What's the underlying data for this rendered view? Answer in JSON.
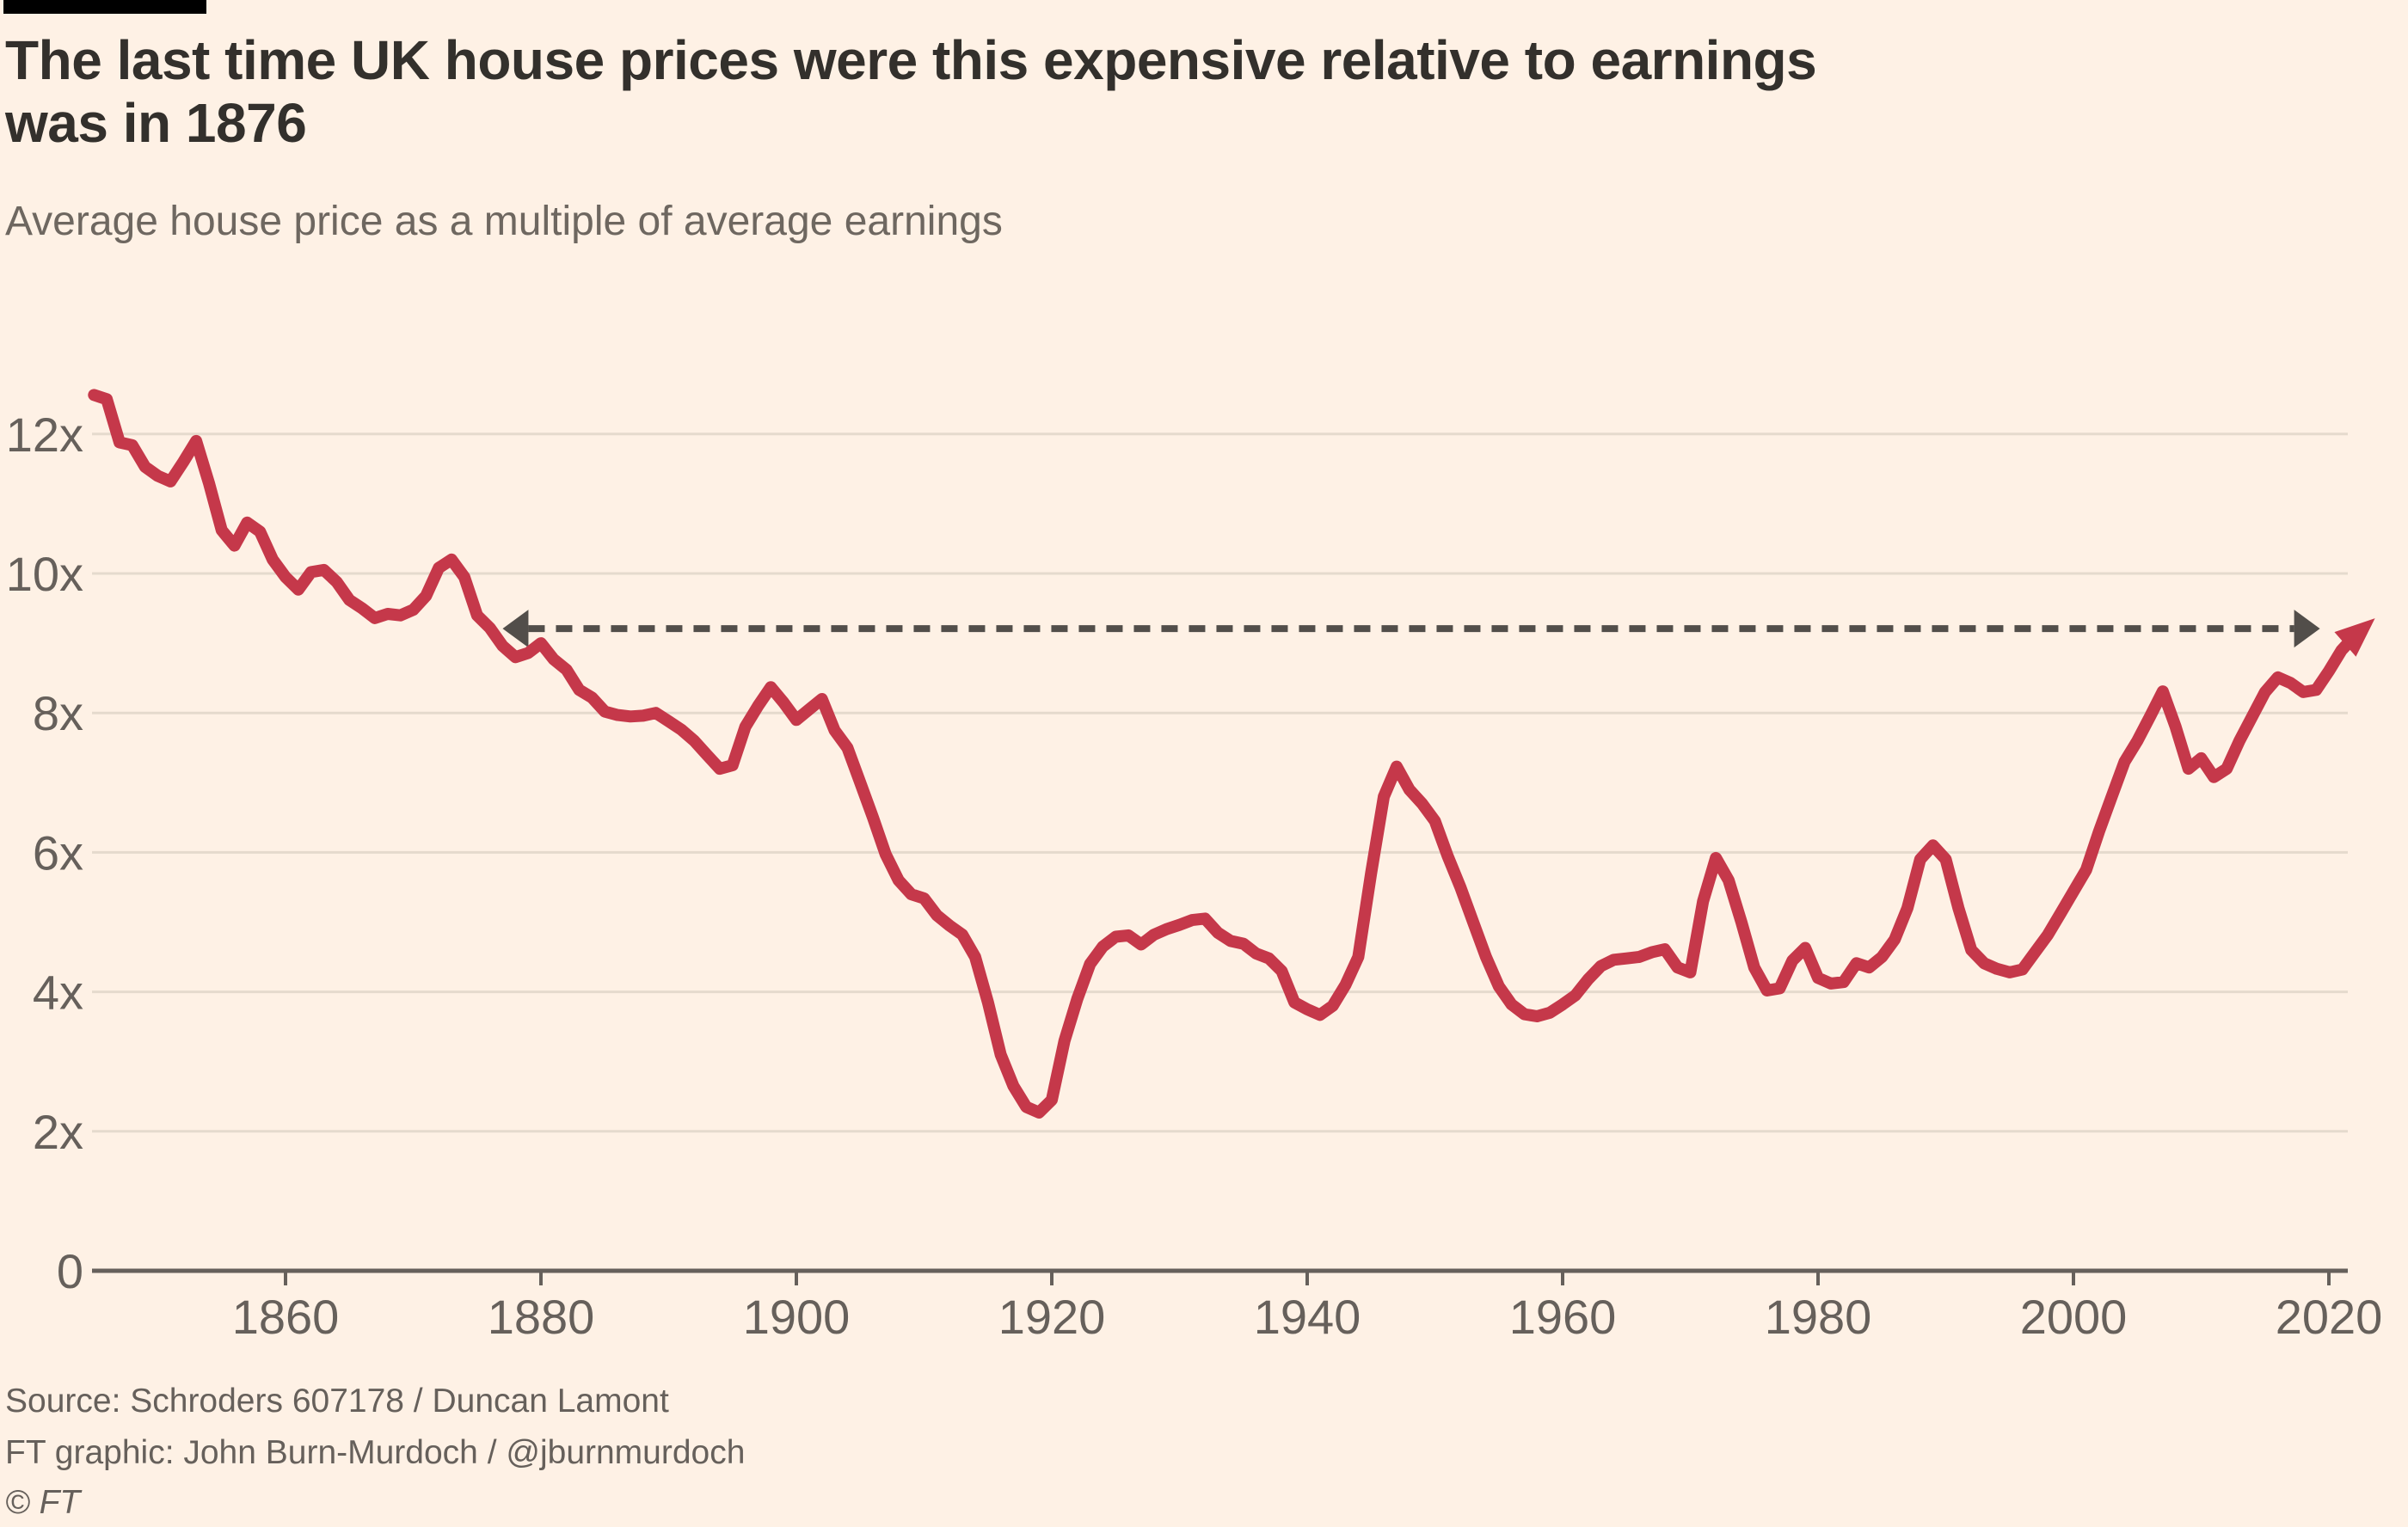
{
  "header": {
    "title_line1": "The last time UK house prices were this expensive relative to earnings",
    "title_line2": "was in 1876",
    "subtitle": "Average house price as a multiple of average earnings"
  },
  "footer": {
    "source": "Source: Schroders 607178 / Duncan Lamont",
    "credit": "FT graphic: John Burn-Murdoch / @jburnmurdoch",
    "copyright": "© FT"
  },
  "colors": {
    "background": "#FEF1E5",
    "title_text": "#33302C",
    "secondary_text": "#66605B",
    "gridline": "#E5DACD",
    "axis": "#66605B",
    "series_red": "#C5384A",
    "reference_dash": "#524E4A",
    "brand_bar": "#000000"
  },
  "chart_data": {
    "type": "line",
    "title": "The last time UK house prices were this expensive relative to earnings was in 1876",
    "subtitle": "Average house price as a multiple of average earnings",
    "xlabel": "",
    "ylabel": "",
    "xlim": [
      1845,
      2026
    ],
    "ylim": [
      0,
      13
    ],
    "grid": "horizontal",
    "legend": "none",
    "x_ticks": [
      1860,
      1880,
      1900,
      1920,
      1940,
      1960,
      1980,
      2000,
      2020
    ],
    "y_ticks": [
      {
        "value": 0,
        "label": "0"
      },
      {
        "value": 2,
        "label": "2x"
      },
      {
        "value": 4,
        "label": "4x"
      },
      {
        "value": 6,
        "label": "6x"
      },
      {
        "value": 8,
        "label": "8x"
      },
      {
        "value": 10,
        "label": "10x"
      },
      {
        "value": 12,
        "label": "12x"
      }
    ],
    "annotation": {
      "type": "dashed-double-arrow-line",
      "level": 9.21,
      "from_year": 1877,
      "to_year": 2019.3,
      "meaning": "1876 price-to-earnings level carried across to the present day"
    },
    "series": [
      {
        "name": "Average house price as a multiple of average earnings",
        "color": "#C5384A",
        "end_marker": "arrowhead-up-right",
        "points": [
          [
            1845,
            12.56
          ],
          [
            1846,
            12.5
          ],
          [
            1847,
            11.88
          ],
          [
            1848,
            11.84
          ],
          [
            1849,
            11.53
          ],
          [
            1850,
            11.4
          ],
          [
            1851,
            11.32
          ],
          [
            1852,
            11.6
          ],
          [
            1853,
            11.9
          ],
          [
            1854,
            11.3
          ],
          [
            1855,
            10.62
          ],
          [
            1856,
            10.4
          ],
          [
            1857,
            10.73
          ],
          [
            1858,
            10.6
          ],
          [
            1859,
            10.2
          ],
          [
            1860,
            9.95
          ],
          [
            1861,
            9.77
          ],
          [
            1862,
            10.02
          ],
          [
            1863,
            10.05
          ],
          [
            1864,
            9.88
          ],
          [
            1865,
            9.62
          ],
          [
            1866,
            9.5
          ],
          [
            1867,
            9.36
          ],
          [
            1868,
            9.42
          ],
          [
            1869,
            9.4
          ],
          [
            1870,
            9.48
          ],
          [
            1871,
            9.68
          ],
          [
            1872,
            10.08
          ],
          [
            1873,
            10.2
          ],
          [
            1874,
            9.95
          ],
          [
            1875,
            9.4
          ],
          [
            1876,
            9.22
          ],
          [
            1877,
            8.96
          ],
          [
            1878,
            8.8
          ],
          [
            1879,
            8.86
          ],
          [
            1880,
            9.0
          ],
          [
            1881,
            8.77
          ],
          [
            1882,
            8.62
          ],
          [
            1883,
            8.33
          ],
          [
            1884,
            8.22
          ],
          [
            1885,
            8.02
          ],
          [
            1886,
            7.97
          ],
          [
            1887,
            7.95
          ],
          [
            1888,
            7.96
          ],
          [
            1889,
            8.0
          ],
          [
            1890,
            7.88
          ],
          [
            1891,
            7.76
          ],
          [
            1892,
            7.6
          ],
          [
            1893,
            7.4
          ],
          [
            1894,
            7.2
          ],
          [
            1895,
            7.25
          ],
          [
            1896,
            7.8
          ],
          [
            1897,
            8.1
          ],
          [
            1898,
            8.37
          ],
          [
            1899,
            8.15
          ],
          [
            1900,
            7.9
          ],
          [
            1901,
            8.05
          ],
          [
            1902,
            8.2
          ],
          [
            1903,
            7.75
          ],
          [
            1904,
            7.5
          ],
          [
            1905,
            7.0
          ],
          [
            1906,
            6.5
          ],
          [
            1907,
            5.97
          ],
          [
            1908,
            5.6
          ],
          [
            1909,
            5.4
          ],
          [
            1910,
            5.34
          ],
          [
            1911,
            5.1
          ],
          [
            1912,
            4.95
          ],
          [
            1913,
            4.82
          ],
          [
            1914,
            4.5
          ],
          [
            1915,
            3.85
          ],
          [
            1916,
            3.1
          ],
          [
            1917,
            2.65
          ],
          [
            1918,
            2.35
          ],
          [
            1919,
            2.27
          ],
          [
            1920,
            2.45
          ],
          [
            1921,
            3.3
          ],
          [
            1922,
            3.9
          ],
          [
            1923,
            4.4
          ],
          [
            1924,
            4.65
          ],
          [
            1925,
            4.79
          ],
          [
            1926,
            4.81
          ],
          [
            1927,
            4.68
          ],
          [
            1928,
            4.82
          ],
          [
            1929,
            4.9
          ],
          [
            1930,
            4.96
          ],
          [
            1931,
            5.03
          ],
          [
            1932,
            5.05
          ],
          [
            1933,
            4.85
          ],
          [
            1934,
            4.73
          ],
          [
            1935,
            4.69
          ],
          [
            1936,
            4.55
          ],
          [
            1937,
            4.48
          ],
          [
            1938,
            4.3
          ],
          [
            1939,
            3.85
          ],
          [
            1940,
            3.75
          ],
          [
            1941,
            3.67
          ],
          [
            1942,
            3.8
          ],
          [
            1943,
            4.1
          ],
          [
            1944,
            4.5
          ],
          [
            1945,
            5.7
          ],
          [
            1946,
            6.8
          ],
          [
            1947,
            7.23
          ],
          [
            1948,
            6.9
          ],
          [
            1949,
            6.7
          ],
          [
            1950,
            6.45
          ],
          [
            1951,
            5.95
          ],
          [
            1952,
            5.5
          ],
          [
            1953,
            5.0
          ],
          [
            1954,
            4.5
          ],
          [
            1955,
            4.08
          ],
          [
            1956,
            3.82
          ],
          [
            1957,
            3.68
          ],
          [
            1958,
            3.65
          ],
          [
            1959,
            3.7
          ],
          [
            1960,
            3.82
          ],
          [
            1961,
            3.95
          ],
          [
            1962,
            4.18
          ],
          [
            1963,
            4.37
          ],
          [
            1964,
            4.46
          ],
          [
            1965,
            4.48
          ],
          [
            1966,
            4.5
          ],
          [
            1967,
            4.57
          ],
          [
            1968,
            4.61
          ],
          [
            1969,
            4.35
          ],
          [
            1970,
            4.28
          ],
          [
            1971,
            5.3
          ],
          [
            1972,
            5.92
          ],
          [
            1973,
            5.6
          ],
          [
            1974,
            5.0
          ],
          [
            1975,
            4.35
          ],
          [
            1976,
            4.02
          ],
          [
            1977,
            4.05
          ],
          [
            1978,
            4.45
          ],
          [
            1979,
            4.63
          ],
          [
            1980,
            4.2
          ],
          [
            1981,
            4.12
          ],
          [
            1982,
            4.14
          ],
          [
            1983,
            4.41
          ],
          [
            1984,
            4.35
          ],
          [
            1985,
            4.5
          ],
          [
            1986,
            4.75
          ],
          [
            1987,
            5.2
          ],
          [
            1988,
            5.9
          ],
          [
            1989,
            6.1
          ],
          [
            1990,
            5.9
          ],
          [
            1991,
            5.2
          ],
          [
            1992,
            4.6
          ],
          [
            1993,
            4.41
          ],
          [
            1994,
            4.33
          ],
          [
            1995,
            4.28
          ],
          [
            1996,
            4.32
          ],
          [
            1997,
            4.57
          ],
          [
            1998,
            4.82
          ],
          [
            1999,
            5.13
          ],
          [
            2000,
            5.44
          ],
          [
            2001,
            5.75
          ],
          [
            2002,
            6.3
          ],
          [
            2003,
            6.8
          ],
          [
            2004,
            7.3
          ],
          [
            2005,
            7.6
          ],
          [
            2006,
            7.95
          ],
          [
            2007,
            8.31
          ],
          [
            2008,
            7.8
          ],
          [
            2009,
            7.2
          ],
          [
            2010,
            7.35
          ],
          [
            2011,
            7.08
          ],
          [
            2012,
            7.2
          ],
          [
            2013,
            7.6
          ],
          [
            2014,
            7.95
          ],
          [
            2015,
            8.3
          ],
          [
            2016,
            8.51
          ],
          [
            2017,
            8.43
          ],
          [
            2018,
            8.3
          ],
          [
            2019,
            8.33
          ],
          [
            2020,
            8.6
          ],
          [
            2021,
            8.9
          ],
          [
            2022,
            9.1
          ],
          [
            2023,
            9.26
          ]
        ]
      }
    ]
  }
}
